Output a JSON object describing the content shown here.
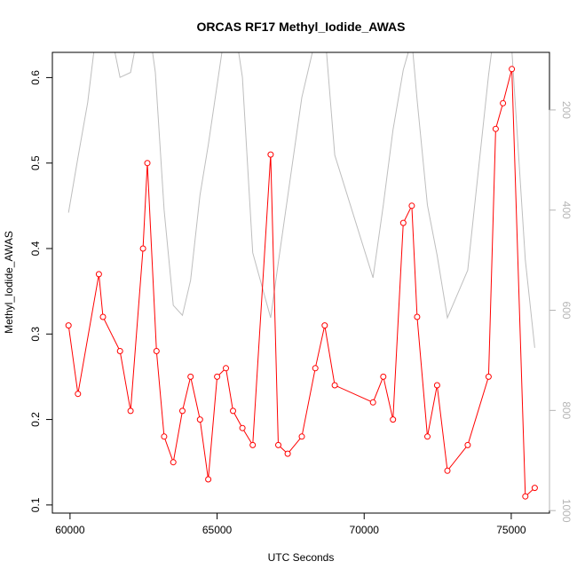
{
  "chart_data": {
    "type": "line",
    "title": "ORCAS RF17 Methyl_Iodide_AWAS",
    "xlabel": "UTC Seconds",
    "ylabel": "Methyl_Iodide_AWAS",
    "xlim": [
      59400,
      76300
    ],
    "ylim": [
      0.0905,
      0.6295
    ],
    "x_ticks": [
      60000,
      65000,
      70000,
      75000
    ],
    "y_ticks": [
      0.1,
      0.2,
      0.3,
      0.4,
      0.5,
      0.6
    ],
    "y2_ticks": [
      200,
      400,
      600,
      800,
      1000
    ],
    "y2_reversed": true,
    "y2lim": [
      1005,
      85
    ],
    "grid": false,
    "series": [
      {
        "color": "#ff0000",
        "style": "line+points",
        "points": [
          [
            59950,
            0.31
          ],
          [
            60270,
            0.23
          ],
          [
            60980,
            0.37
          ],
          [
            61120,
            0.32
          ],
          [
            61700,
            0.28
          ],
          [
            62060,
            0.21
          ],
          [
            62480,
            0.4
          ],
          [
            62630,
            0.5
          ],
          [
            62940,
            0.28
          ],
          [
            63200,
            0.18
          ],
          [
            63510,
            0.15
          ],
          [
            63820,
            0.21
          ],
          [
            64100,
            0.25
          ],
          [
            64420,
            0.2
          ],
          [
            64700,
            0.13
          ],
          [
            65000,
            0.25
          ],
          [
            65300,
            0.26
          ],
          [
            65540,
            0.21
          ],
          [
            65860,
            0.19
          ],
          [
            66210,
            0.17
          ],
          [
            66820,
            0.51
          ],
          [
            67080,
            0.17
          ],
          [
            67400,
            0.16
          ],
          [
            67880,
            0.18
          ],
          [
            68340,
            0.26
          ],
          [
            68660,
            0.31
          ],
          [
            69000,
            0.24
          ],
          [
            70300,
            0.22
          ],
          [
            70650,
            0.25
          ],
          [
            70980,
            0.2
          ],
          [
            71330,
            0.43
          ],
          [
            71620,
            0.45
          ],
          [
            71800,
            0.32
          ],
          [
            72150,
            0.18
          ],
          [
            72480,
            0.24
          ],
          [
            72830,
            0.14
          ],
          [
            73520,
            0.17
          ],
          [
            74230,
            0.25
          ],
          [
            74470,
            0.54
          ],
          [
            74720,
            0.57
          ],
          [
            75020,
            0.61
          ],
          [
            75480,
            0.11
          ],
          [
            75800,
            0.12
          ]
        ]
      },
      {
        "color": "#bebebe",
        "style": "line",
        "axis": "y2",
        "points": [
          [
            59950,
            405
          ],
          [
            60270,
            295
          ],
          [
            60600,
            185
          ],
          [
            60900,
            40
          ],
          [
            61300,
            20
          ],
          [
            61700,
            135
          ],
          [
            62060,
            125
          ],
          [
            62300,
            50
          ],
          [
            62630,
            10
          ],
          [
            62900,
            125
          ],
          [
            63200,
            400
          ],
          [
            63510,
            590
          ],
          [
            63820,
            610
          ],
          [
            64100,
            540
          ],
          [
            64420,
            370
          ],
          [
            64700,
            270
          ],
          [
            65000,
            150
          ],
          [
            65300,
            30
          ],
          [
            65540,
            10
          ],
          [
            65860,
            135
          ],
          [
            66210,
            485
          ],
          [
            66820,
            615
          ],
          [
            67080,
            505
          ],
          [
            67880,
            175
          ],
          [
            68340,
            60
          ],
          [
            68660,
            40
          ],
          [
            69000,
            290
          ],
          [
            70300,
            535
          ],
          [
            70650,
            390
          ],
          [
            70980,
            240
          ],
          [
            71330,
            120
          ],
          [
            71620,
            60
          ],
          [
            71800,
            180
          ],
          [
            72150,
            390
          ],
          [
            72480,
            490
          ],
          [
            72830,
            615
          ],
          [
            73520,
            520
          ],
          [
            74230,
            130
          ],
          [
            74470,
            20
          ],
          [
            74720,
            40
          ],
          [
            75020,
            80
          ],
          [
            75480,
            500
          ],
          [
            75800,
            675
          ]
        ]
      }
    ]
  }
}
